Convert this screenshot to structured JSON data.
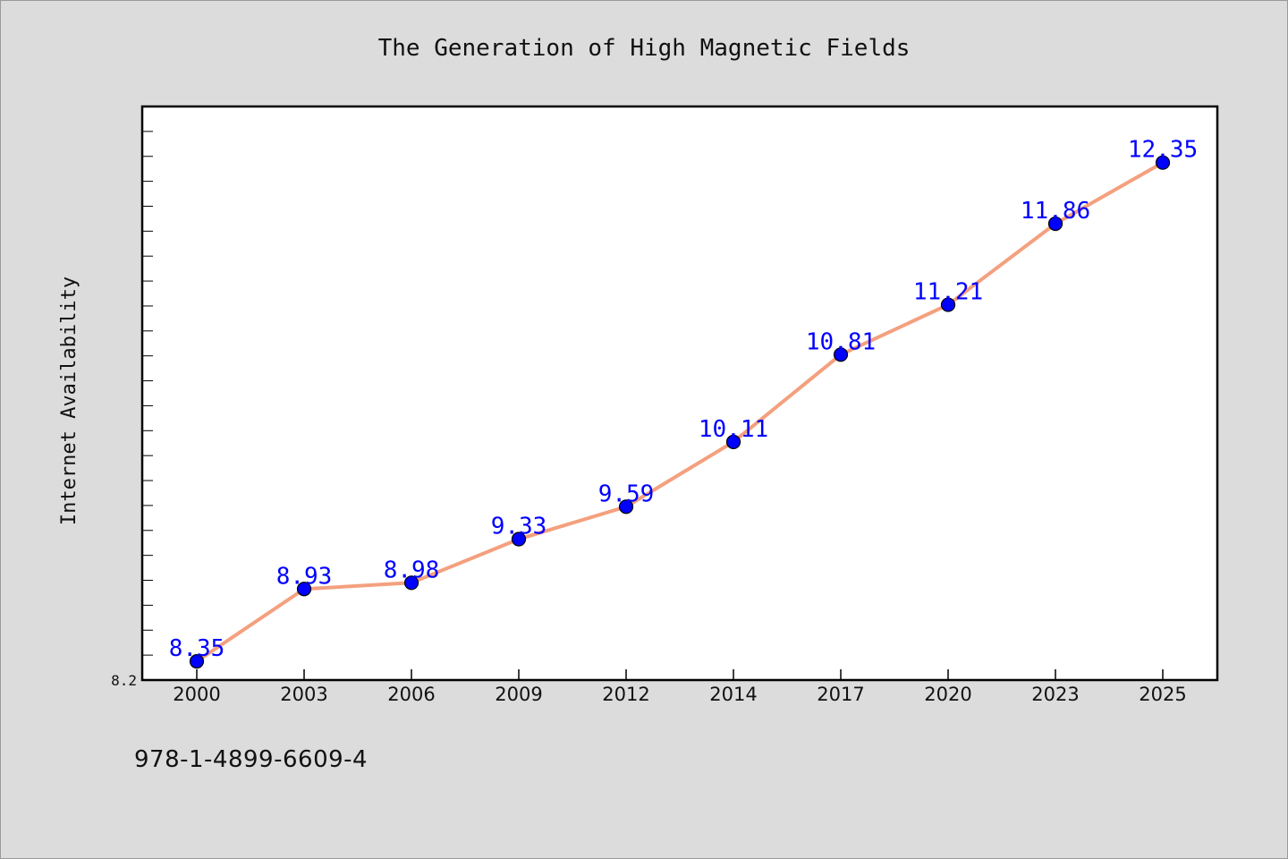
{
  "chart_data": {
    "type": "line",
    "title": "The Generation of High Magnetic Fields",
    "xlabel": "",
    "ylabel": "Internet Availability",
    "categories": [
      "2000",
      "2003",
      "2006",
      "2009",
      "2012",
      "2014",
      "2017",
      "2020",
      "2023",
      "2025"
    ],
    "series": [
      {
        "values": [
          8.35,
          8.93,
          8.98,
          9.33,
          9.59,
          10.11,
          10.81,
          11.21,
          11.86,
          12.35
        ],
        "labels": [
          "8.35",
          "8.93",
          "8.98",
          "9.33",
          "9.59",
          "10.11",
          "10.81",
          "11.21",
          "11.86",
          "12.35"
        ]
      }
    ],
    "ylim": [
      8.2,
      12.8
    ],
    "y_tick_labels": [
      "8.2"
    ],
    "grid": false,
    "colors": {
      "line": "#f4a07e",
      "marker": "#0000ff",
      "label": "#0000ff",
      "plot_background": "#ffffff",
      "page_background": "#dcdcdc"
    }
  },
  "footer": {
    "isbn": "978-1-4899-6609-4"
  }
}
